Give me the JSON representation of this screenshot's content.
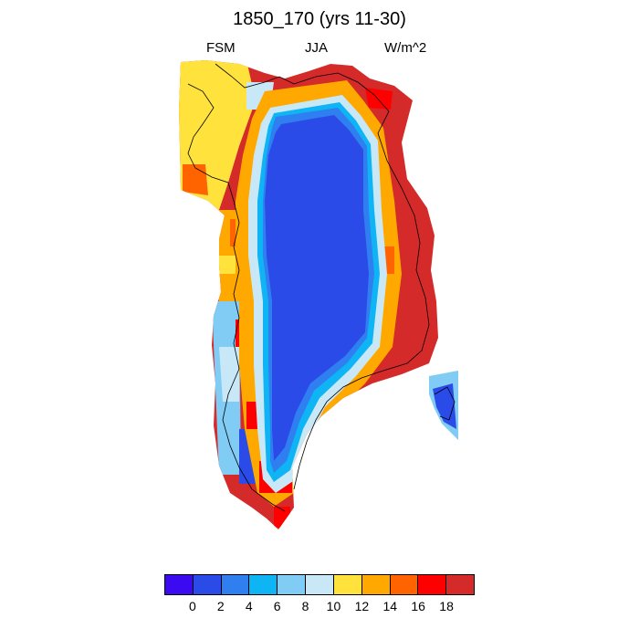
{
  "title": "1850_170 (yrs 11-30)",
  "left_label": "FSM",
  "center_label": "JJA",
  "right_label": "W/m^2",
  "colorbar": {
    "colors": [
      "#3c0af0",
      "#2a4be8",
      "#2f7ff0",
      "#0fb4f5",
      "#80ccf5",
      "#c8e8f8",
      "#ffe23c",
      "#ffa800",
      "#ff6400",
      "#ff0000",
      "#d42a2a"
    ],
    "labels": [
      "0",
      "2",
      "4",
      "6",
      "8",
      "10",
      "12",
      "14",
      "16",
      "18"
    ]
  }
}
